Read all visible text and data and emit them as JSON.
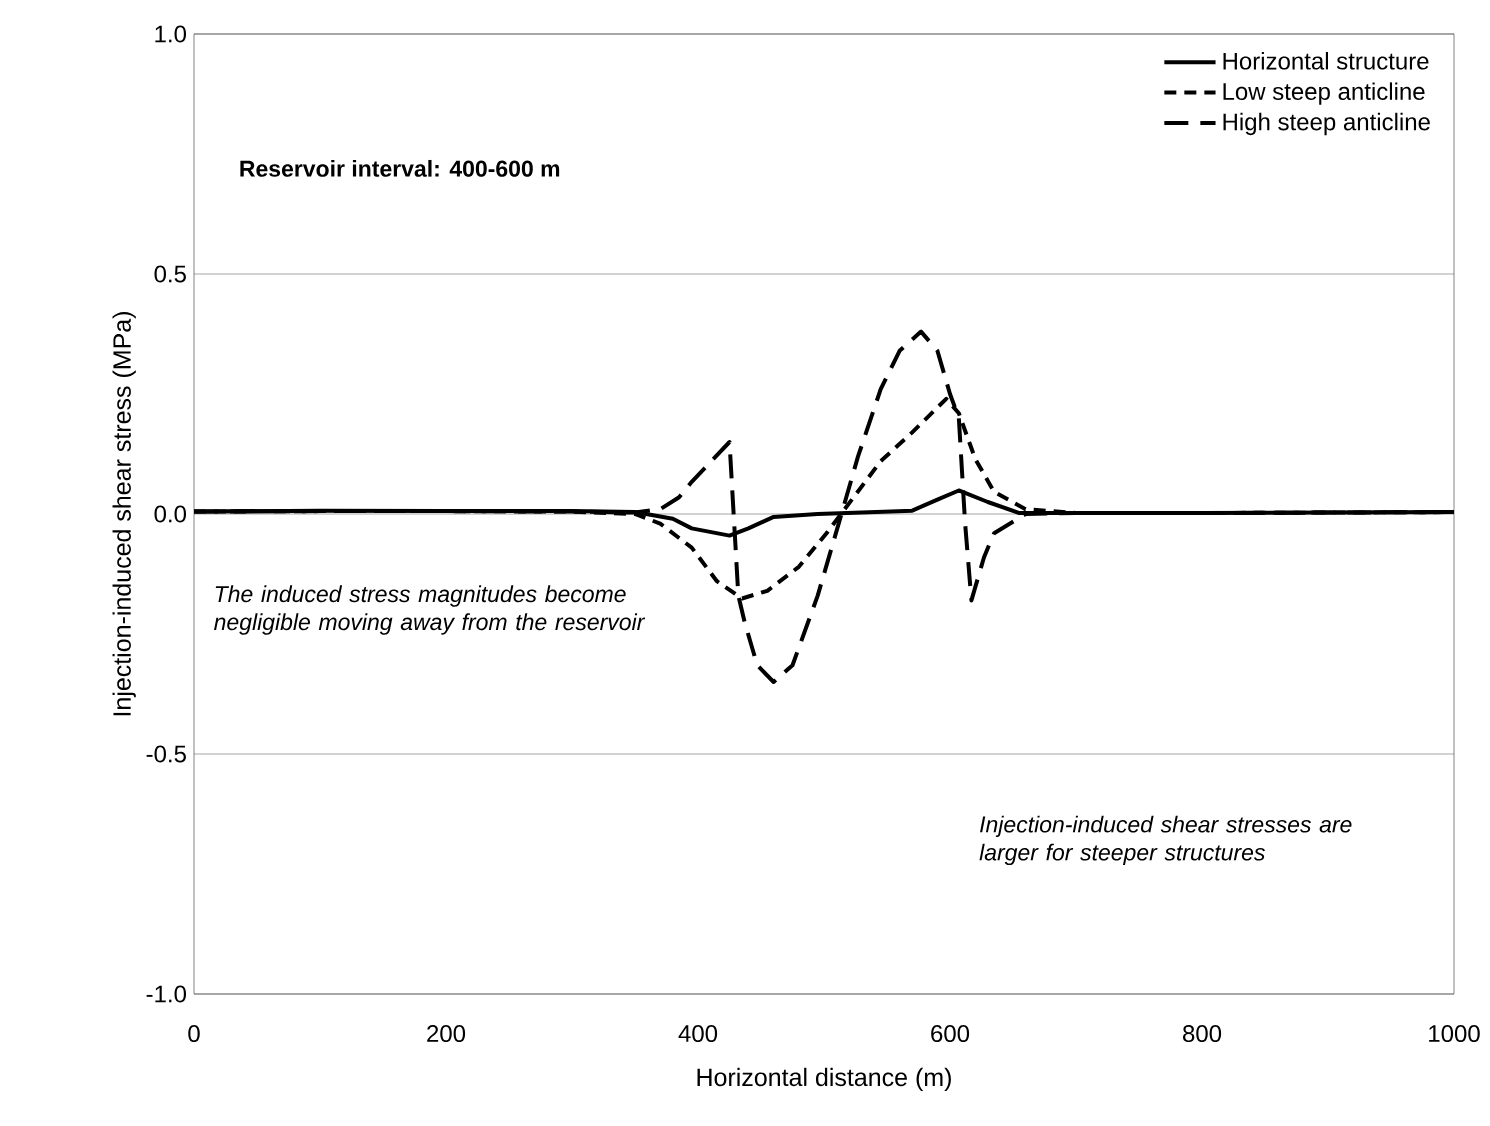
{
  "chart_data": {
    "type": "line",
    "xlabel": "Horizontal distance (m)",
    "ylabel": "Injection-induced shear stress (MPa)",
    "xlim": [
      0,
      1000
    ],
    "xticks": [
      0,
      200,
      400,
      600,
      800,
      1000
    ],
    "ylim": [
      -1,
      1
    ],
    "yticks": [
      {
        "value": -1,
        "label": "-1.0"
      },
      {
        "value": -0.5,
        "label": "-0.5"
      },
      {
        "value": 0,
        "label": "0.0"
      },
      {
        "value": 0.5,
        "label": "0.5"
      },
      {
        "value": 1,
        "label": "1.0"
      }
    ],
    "grid": "y",
    "legend": "top right",
    "marker": "none",
    "annotations": [
      "Reservoir interval: 400-600 m",
      "The induced stress magnitudes become negligible moving away from the reservoir",
      "Injection-induced shear stresses are larger for steeper structures"
    ],
    "series": [
      {
        "name": "Horizontal structure",
        "color": "#000000",
        "line_style": "solid",
        "x": [
          0,
          100,
          200,
          300,
          350,
          380,
          395,
          425,
          440,
          460,
          495,
          530,
          570,
          590,
          607,
          630,
          655,
          700,
          800,
          900,
          1000
        ],
        "values": [
          0.005,
          0.007,
          0.006,
          0.006,
          0.004,
          -0.01,
          -0.03,
          -0.045,
          -0.03,
          -0.006,
          0,
          0.003,
          0.007,
          0.03,
          0.049,
          0.025,
          0.002,
          0.002,
          0.002,
          0.003,
          0.004
        ]
      },
      {
        "name": "Low steep anticline",
        "color": "#000000",
        "line_style": "dashed",
        "x": [
          0,
          100,
          200,
          300,
          350,
          370,
          385,
          395,
          415,
          435,
          455,
          480,
          502,
          525,
          545,
          570,
          597,
          607,
          620,
          635,
          660,
          700,
          800,
          900,
          1000
        ],
        "values": [
          0.005,
          0.006,
          0.006,
          0.005,
          0,
          -0.02,
          -0.05,
          -0.07,
          -0.14,
          -0.176,
          -0.16,
          -0.11,
          -0.04,
          0.04,
          0.11,
          0.17,
          0.24,
          0.21,
          0.115,
          0.046,
          0.01,
          0.002,
          0.002,
          0.003,
          0.004
        ]
      },
      {
        "name": "High steep anticline",
        "color": "#000000",
        "line_style": "dashed",
        "x": [
          0,
          100,
          200,
          300,
          350,
          370,
          385,
          395,
          425,
          432,
          437,
          447,
          460,
          475,
          495,
          512,
          527,
          545,
          560,
          577,
          590,
          600,
          607,
          612,
          617,
          627,
          635,
          660,
          700,
          800,
          900,
          1000
        ],
        "values": [
          0.005,
          0.006,
          0.006,
          0.005,
          0.003,
          0.01,
          0.035,
          0.067,
          0.15,
          -0.17,
          -0.225,
          -0.315,
          -0.35,
          -0.315,
          -0.17,
          -0.017,
          0.12,
          0.26,
          0.34,
          0.38,
          0.34,
          0.25,
          0.2,
          -0.02,
          -0.18,
          -0.09,
          -0.04,
          0,
          0.002,
          0.002,
          0.003,
          0.004
        ]
      }
    ]
  }
}
